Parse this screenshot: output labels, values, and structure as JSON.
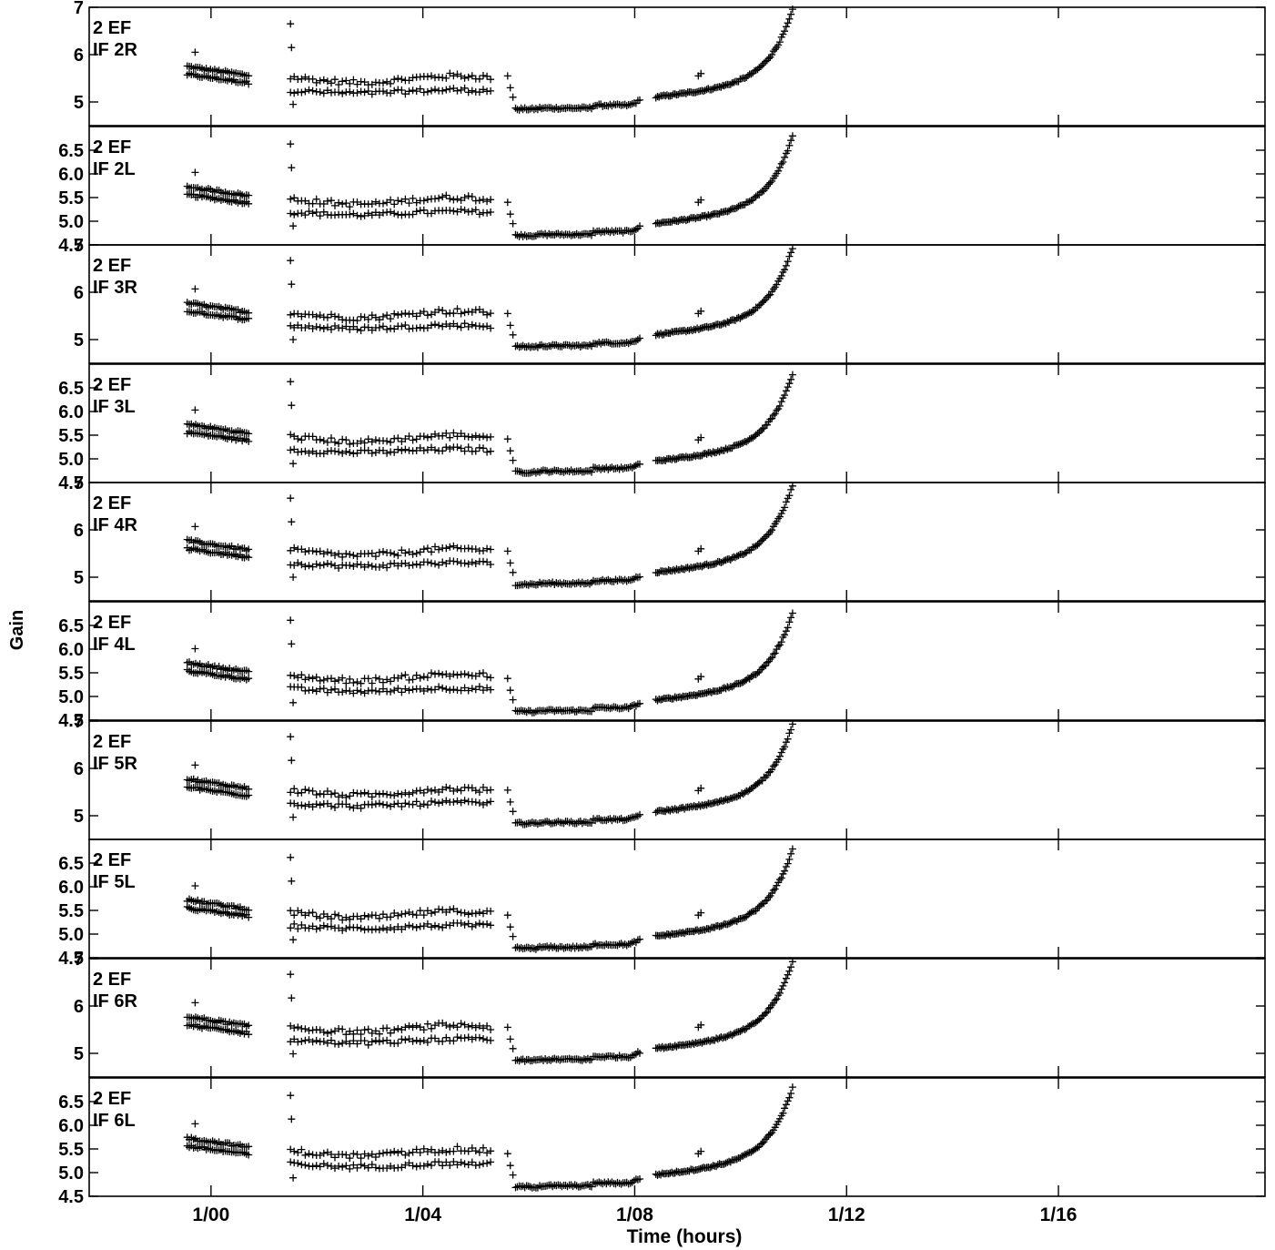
{
  "figure": {
    "xlabel": "Time (hours)",
    "ylabel": "Gain",
    "x_tick_labels": [
      {
        "t": 0,
        "label": "1/00"
      },
      {
        "t": 4,
        "label": "1/04"
      },
      {
        "t": 8,
        "label": "1/08"
      },
      {
        "t": 12,
        "label": "1/12"
      },
      {
        "t": 16,
        "label": "1/16"
      }
    ],
    "colors": {
      "background": "#ffffff",
      "axes": "#000000",
      "markers": "#000000"
    }
  },
  "chart_data": [
    {
      "type": "scatter",
      "panel_label": [
        "2 EF",
        "IF 2R"
      ],
      "ylim": [
        4.5,
        7.0
      ],
      "yticks": [
        5,
        6,
        7
      ],
      "ytick_labels": [
        "5",
        "6",
        "7"
      ],
      "params": {
        "a": 5.7,
        "b": 5.2,
        "m": 4.85,
        "mh": 5.1,
        "q": 0
      }
    },
    {
      "type": "scatter",
      "panel_label": [
        "2 EF",
        "IF 2L"
      ],
      "ylim": [
        4.5,
        7.0
      ],
      "yticks": [
        4.5,
        5.0,
        5.5,
        6.0,
        6.5
      ],
      "ytick_labels": [
        "4.5",
        "5.0",
        "5.5",
        "6.0",
        "6.5"
      ],
      "params": {
        "a": 5.68,
        "b": 5.15,
        "m": 4.7,
        "mh": 4.95,
        "q": 1
      }
    },
    {
      "type": "scatter",
      "panel_label": [
        "2 EF",
        "IF 3R"
      ],
      "ylim": [
        4.5,
        7.0
      ],
      "yticks": [
        5,
        6,
        7
      ],
      "ytick_labels": [
        "5",
        "6",
        "7"
      ],
      "params": {
        "a": 5.72,
        "b": 5.25,
        "m": 4.85,
        "mh": 5.1,
        "q": 2
      }
    },
    {
      "type": "scatter",
      "panel_label": [
        "2 EF",
        "IF 3L"
      ],
      "ylim": [
        4.5,
        7.0
      ],
      "yticks": [
        4.5,
        5.0,
        5.5,
        6.0,
        6.5
      ],
      "ytick_labels": [
        "4.5",
        "5.0",
        "5.5",
        "6.0",
        "6.5"
      ],
      "params": {
        "a": 5.68,
        "b": 5.15,
        "m": 4.72,
        "mh": 4.95,
        "q": 3
      }
    },
    {
      "type": "scatter",
      "panel_label": [
        "2 EF",
        "IF 4R"
      ],
      "ylim": [
        4.5,
        7.0
      ],
      "yticks": [
        5,
        6,
        7
      ],
      "ytick_labels": [
        "5",
        "6",
        "7"
      ],
      "params": {
        "a": 5.72,
        "b": 5.25,
        "m": 4.85,
        "mh": 5.1,
        "q": 4
      }
    },
    {
      "type": "scatter",
      "panel_label": [
        "2 EF",
        "IF 4L"
      ],
      "ylim": [
        4.5,
        7.0
      ],
      "yticks": [
        4.5,
        5.0,
        5.5,
        6.0,
        6.5
      ],
      "ytick_labels": [
        "4.5",
        "5.0",
        "5.5",
        "6.0",
        "6.5"
      ],
      "params": {
        "a": 5.66,
        "b": 5.12,
        "m": 4.68,
        "mh": 4.92,
        "q": 5
      }
    },
    {
      "type": "scatter",
      "panel_label": [
        "2 EF",
        "IF 5R"
      ],
      "ylim": [
        4.5,
        7.0
      ],
      "yticks": [
        5,
        6,
        7
      ],
      "ytick_labels": [
        "5",
        "6",
        "7"
      ],
      "params": {
        "a": 5.72,
        "b": 5.22,
        "m": 4.84,
        "mh": 5.08,
        "q": 6
      }
    },
    {
      "type": "scatter",
      "panel_label": [
        "2 EF",
        "IF 5L"
      ],
      "ylim": [
        4.5,
        7.0
      ],
      "yticks": [
        4.5,
        5.0,
        5.5,
        6.0,
        6.5
      ],
      "ytick_labels": [
        "4.5",
        "5.0",
        "5.5",
        "6.0",
        "6.5"
      ],
      "params": {
        "a": 5.67,
        "b": 5.13,
        "m": 4.7,
        "mh": 4.95,
        "q": 7
      }
    },
    {
      "type": "scatter",
      "panel_label": [
        "2 EF",
        "IF 6R"
      ],
      "ylim": [
        4.5,
        7.0
      ],
      "yticks": [
        5,
        6,
        7
      ],
      "ytick_labels": [
        "5",
        "6",
        "7"
      ],
      "params": {
        "a": 5.72,
        "b": 5.24,
        "m": 4.85,
        "mh": 5.1,
        "q": 8
      }
    },
    {
      "type": "scatter",
      "panel_label": [
        "2 EF",
        "IF 6L"
      ],
      "ylim": [
        4.5,
        7.0
      ],
      "yticks": [
        4.5,
        5.0,
        5.5,
        6.0,
        6.5
      ],
      "ytick_labels": [
        "4.5",
        "5.0",
        "5.5",
        "6.0",
        "6.5"
      ],
      "params": {
        "a": 5.68,
        "b": 5.14,
        "m": 4.7,
        "mh": 4.95,
        "q": 9
      }
    }
  ]
}
